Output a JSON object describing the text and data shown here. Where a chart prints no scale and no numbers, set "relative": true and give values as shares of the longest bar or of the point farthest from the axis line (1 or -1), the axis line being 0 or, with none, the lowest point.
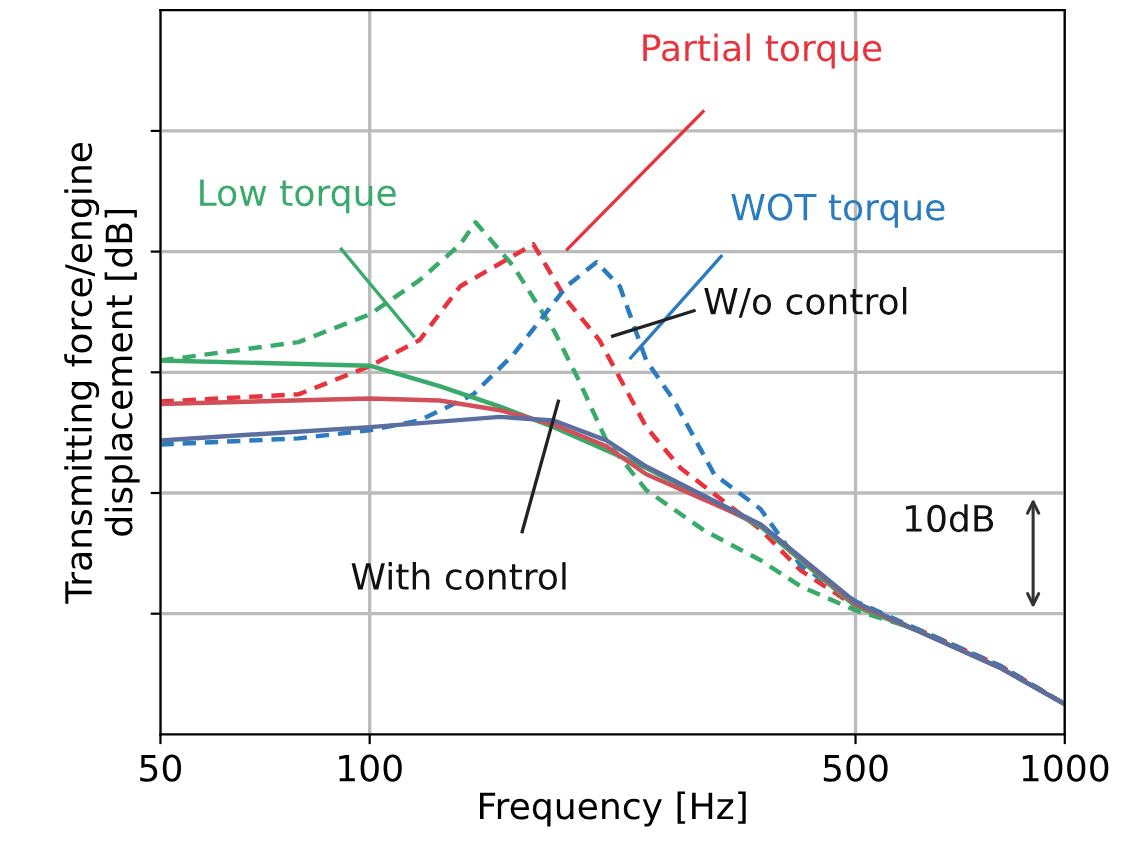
{
  "chart_data": {
    "type": "line",
    "relative": true,
    "xlabel": "Frequency [Hz]",
    "ylabel": "Transmitting force/engine\ndisplacement [dB]",
    "log": "x",
    "xlim": [
      50,
      1000
    ],
    "xticks": [
      50,
      100,
      500,
      1000
    ],
    "grid": true,
    "legend": false,
    "tick_labels": "x",
    "marker": "none",
    "series": [
      {
        "name": "Low torque",
        "color": "#3aaa6a",
        "line_style": "dashed",
        "x": [
          50,
          79,
          100,
          118,
          135,
          142,
          161,
          184,
          200,
          219,
          250,
          303,
          365,
          417,
          500,
          620,
          810,
          1000
        ],
        "values": [
          0.73,
          0.766,
          0.82,
          0.887,
          0.957,
          1.0,
          0.914,
          0.789,
          0.691,
          0.574,
          0.477,
          0.398,
          0.34,
          0.289,
          0.242,
          0.203,
          0.133,
          0.059
        ]
      },
      {
        "name": "Partial torque",
        "color": "#e8323c",
        "line_style": "dashed",
        "x": [
          50,
          79,
          100,
          118,
          135,
          172,
          192,
          214,
          250,
          280,
          365,
          417,
          500,
          620,
          810,
          1000
        ],
        "values": [
          0.65,
          0.664,
          0.719,
          0.77,
          0.875,
          0.957,
          0.848,
          0.77,
          0.6,
          0.52,
          0.4,
          0.32,
          0.25,
          0.203,
          0.133,
          0.059
        ]
      },
      {
        "name": "WOT torque",
        "color": "#2a7bbf",
        "line_style": "dashed",
        "x": [
          50,
          79,
          100,
          118,
          141,
          161,
          192,
          212,
          229,
          250,
          274,
          313,
          365,
          417,
          500,
          620,
          810,
          1000
        ],
        "values": [
          0.566,
          0.578,
          0.594,
          0.613,
          0.664,
          0.742,
          0.875,
          0.922,
          0.875,
          0.73,
          0.652,
          0.508,
          0.44,
          0.33,
          0.26,
          0.203,
          0.133,
          0.059
        ]
      },
      {
        "color": "#3aaa6a",
        "line_style": "solid",
        "x": [
          50,
          100,
          126,
          154,
          184,
          250,
          365,
          500,
          620,
          810,
          1000
        ],
        "values": [
          0.73,
          0.72,
          0.68,
          0.64,
          0.6,
          0.52,
          0.406,
          0.25,
          0.2,
          0.129,
          0.059
        ]
      },
      {
        "color": "#d0505a",
        "line_style": "solid",
        "x": [
          50,
          100,
          126,
          154,
          184,
          219,
          250,
          365,
          500,
          620,
          810,
          1000
        ],
        "values": [
          0.645,
          0.656,
          0.652,
          0.633,
          0.605,
          0.5625,
          0.508,
          0.41,
          0.254,
          0.2,
          0.129,
          0.059
        ]
      },
      {
        "color": "#5a6fa0",
        "line_style": "solid",
        "x": [
          50,
          100,
          154,
          184,
          219,
          250,
          365,
          500,
          620,
          810,
          1000
        ],
        "values": [
          0.574,
          0.6,
          0.62,
          0.613,
          0.574,
          0.523,
          0.41,
          0.258,
          0.2,
          0.129,
          0.059
        ]
      }
    ],
    "annotations": [
      "W/o control",
      "With control",
      "10dB"
    ]
  }
}
